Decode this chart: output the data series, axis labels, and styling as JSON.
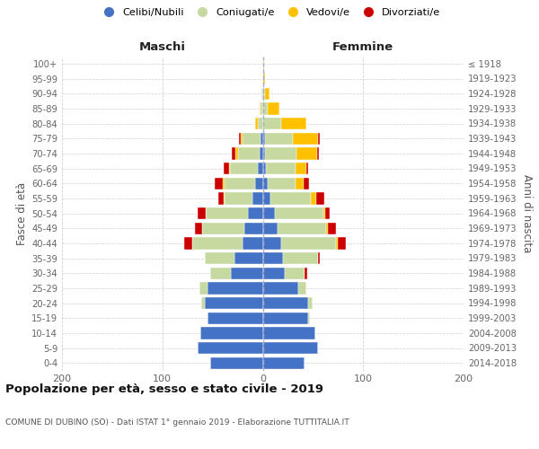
{
  "age_groups": [
    "0-4",
    "5-9",
    "10-14",
    "15-19",
    "20-24",
    "25-29",
    "30-34",
    "35-39",
    "40-44",
    "45-49",
    "50-54",
    "55-59",
    "60-64",
    "65-69",
    "70-74",
    "75-79",
    "80-84",
    "85-89",
    "90-94",
    "95-99",
    "100+"
  ],
  "birth_years": [
    "2014-2018",
    "2009-2013",
    "2004-2008",
    "1999-2003",
    "1994-1998",
    "1989-1993",
    "1984-1988",
    "1979-1983",
    "1974-1978",
    "1969-1973",
    "1964-1968",
    "1959-1963",
    "1954-1958",
    "1949-1953",
    "1944-1948",
    "1939-1943",
    "1934-1938",
    "1929-1933",
    "1924-1928",
    "1919-1923",
    "≤ 1918"
  ],
  "maschi_celibi": [
    52,
    65,
    62,
    55,
    58,
    55,
    32,
    28,
    20,
    18,
    15,
    10,
    8,
    5,
    3,
    2,
    0,
    0,
    0,
    0,
    0
  ],
  "maschi_coniugati": [
    0,
    0,
    0,
    0,
    3,
    8,
    20,
    30,
    50,
    42,
    42,
    28,
    30,
    28,
    22,
    18,
    5,
    2,
    1,
    0,
    0
  ],
  "maschi_vedovi": [
    0,
    0,
    0,
    0,
    0,
    0,
    0,
    0,
    0,
    0,
    0,
    1,
    2,
    1,
    2,
    2,
    3,
    1,
    0,
    0,
    0
  ],
  "maschi_divorziati": [
    0,
    0,
    0,
    0,
    0,
    0,
    0,
    0,
    8,
    8,
    8,
    5,
    8,
    5,
    4,
    2,
    0,
    0,
    0,
    0,
    0
  ],
  "femmine_nubili": [
    42,
    55,
    52,
    45,
    45,
    35,
    22,
    20,
    18,
    15,
    12,
    8,
    5,
    3,
    2,
    2,
    0,
    0,
    0,
    0,
    0
  ],
  "femmine_coniugate": [
    0,
    0,
    0,
    2,
    5,
    8,
    20,
    35,
    55,
    48,
    48,
    40,
    28,
    30,
    32,
    28,
    18,
    5,
    2,
    0,
    0
  ],
  "femmine_vedove": [
    0,
    0,
    0,
    0,
    0,
    0,
    0,
    0,
    2,
    2,
    2,
    5,
    8,
    10,
    20,
    25,
    25,
    12,
    5,
    2,
    1
  ],
  "femmine_divorziate": [
    0,
    0,
    0,
    0,
    0,
    0,
    2,
    2,
    8,
    8,
    5,
    8,
    5,
    2,
    2,
    2,
    0,
    0,
    0,
    0,
    0
  ],
  "colors": {
    "celibi": "#4472c4",
    "coniugati": "#c5d9a0",
    "vedovi": "#ffc000",
    "divorziati": "#cc0000"
  },
  "xlim": 200,
  "title": "Popolazione per età, sesso e stato civile - 2019",
  "subtitle": "COMUNE DI DUBINO (SO) - Dati ISTAT 1° gennaio 2019 - Elaborazione TUTTITALIA.IT",
  "ylabel_left": "Fasce di età",
  "ylabel_right": "Anni di nascita",
  "xlabel_maschi": "Maschi",
  "xlabel_femmine": "Femmine",
  "legend_labels": [
    "Celibi/Nubili",
    "Coniugati/e",
    "Vedovi/e",
    "Divorziati/e"
  ],
  "background_color": "#ffffff",
  "grid_color": "#d0d0d0"
}
